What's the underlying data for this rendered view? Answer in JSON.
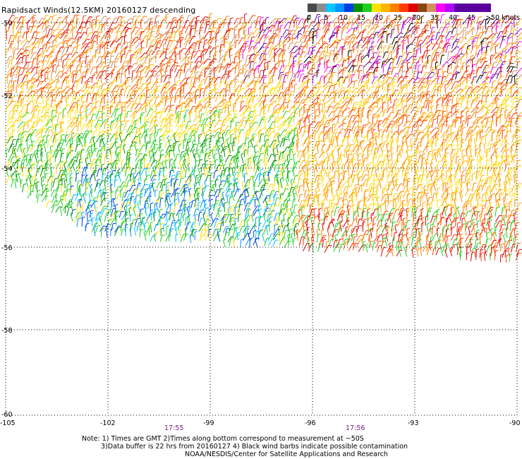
{
  "title": "Rapidsact Winds(12.5KM) 20160127 descending",
  "colorbar": {
    "colors": [
      "#4a4a4a",
      "#8c8c8c",
      "#00c8ff",
      "#0096ff",
      "#0040e0",
      "#009000",
      "#20d020",
      "#ffe000",
      "#ffb400",
      "#ff8000",
      "#ff3c00",
      "#e00000",
      "#8b4513",
      "#d09060",
      "#ff00ff",
      "#b400ff",
      "#5a00a0"
    ],
    "labels": [
      "0",
      "5",
      "10",
      "15",
      "20",
      "25",
      "30",
      "35",
      "40",
      "45",
      ">50 knots"
    ]
  },
  "map": {
    "lon_ticks": [
      "-105",
      "-102",
      "-99",
      "-96",
      "-93",
      "-90"
    ],
    "lat_ticks": [
      "-50",
      "-52",
      "-54",
      "-56",
      "-58",
      "-60"
    ],
    "times": [
      "17:55",
      "17:56"
    ]
  },
  "notes": [
    "Note: 1) Times are GMT 2)Times along bottom correspond to measurement at ~50S",
    "3)Data buffer is 22 hrs from 20160127 4) Black wind barbs indicate possible contamination",
    "NOAA/NESDIS/Center for Satellite Applications and Research"
  ]
}
